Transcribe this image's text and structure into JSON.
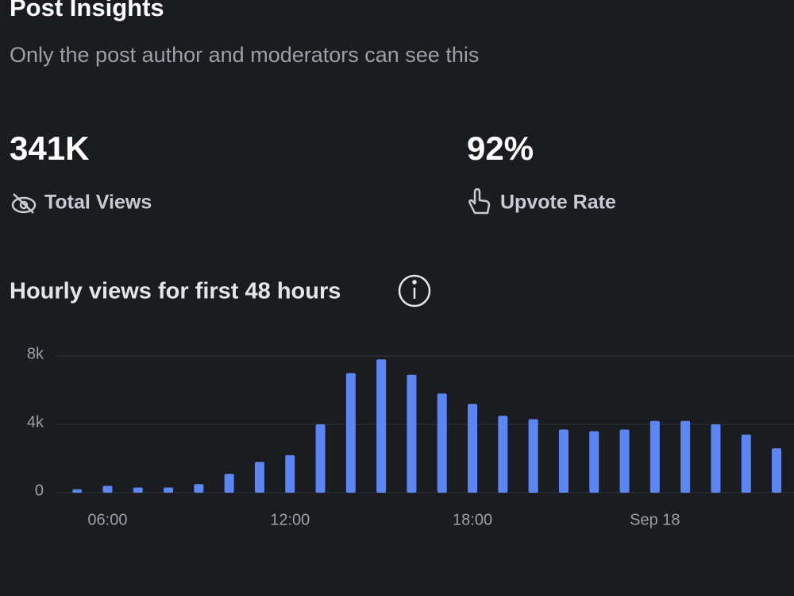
{
  "header": {
    "title": "Post Insights",
    "subtitle": "Only the post author and moderators can see this"
  },
  "stats": [
    {
      "value": "341K",
      "label": "Total Views"
    },
    {
      "value": "92%",
      "label": "Upvote Rate"
    }
  ],
  "chart_data": {
    "type": "bar",
    "title": "Hourly views for first 48 hours",
    "categories": [
      null,
      "06:00",
      null,
      null,
      null,
      null,
      null,
      "12:00",
      null,
      null,
      null,
      null,
      null,
      "18:00",
      null,
      null,
      null,
      null,
      null,
      "Sep 18",
      null,
      null,
      null,
      null
    ],
    "values": [
      200,
      400,
      300,
      300,
      500,
      1100,
      1800,
      2200,
      4000,
      7000,
      7800,
      6900,
      5800,
      5200,
      4500,
      4300,
      3700,
      3600,
      3700,
      4200,
      4200,
      4000,
      3400,
      2600
    ],
    "color": "#5b86f5",
    "ylim": [
      0,
      8000
    ],
    "yticks": [
      0,
      {
        "value": 4000,
        "label": "4k"
      },
      {
        "value": 8000,
        "label": "8k"
      }
    ],
    "grid": true
  }
}
